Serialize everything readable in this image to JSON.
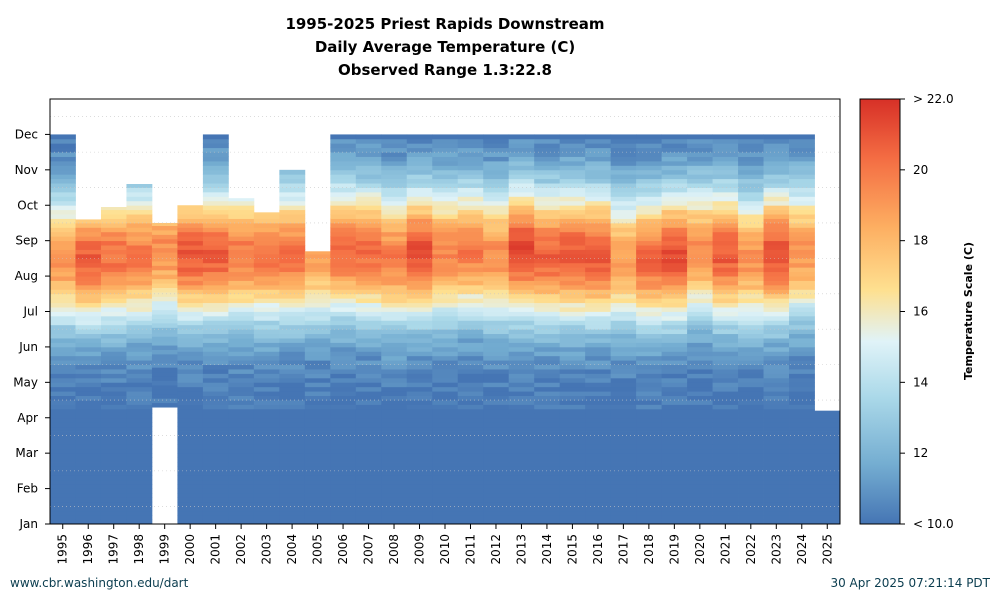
{
  "chart_data": {
    "type": "heatmap",
    "title": "1995-2025 Priest Rapids Downstream",
    "subtitle": "Daily Average Temperature (C)",
    "subtitle2": "Observed Range 1.3:22.8",
    "x_categories": [
      "1995",
      "1996",
      "1997",
      "1998",
      "1999",
      "2000",
      "2001",
      "2002",
      "2003",
      "2004",
      "2005",
      "2006",
      "2007",
      "2008",
      "2009",
      "2010",
      "2011",
      "2012",
      "2013",
      "2014",
      "2015",
      "2016",
      "2017",
      "2018",
      "2019",
      "2020",
      "2021",
      "2022",
      "2023",
      "2024",
      "2025"
    ],
    "y_tick_labels": [
      "Jan",
      "Feb",
      "Mar",
      "Apr",
      "May",
      "Jun",
      "Jul",
      "Aug",
      "Sep",
      "Oct",
      "Nov",
      "Dec"
    ],
    "colorbar": {
      "label": "Temperature Scale (C)",
      "range": [
        10,
        22
      ],
      "tick_labels": [
        "< 10.0",
        "12",
        "14",
        "16",
        "18",
        "20",
        "> 22.0"
      ],
      "tick_values": [
        10,
        12,
        14,
        16,
        18,
        20,
        22
      ],
      "colors": [
        "#4575b4",
        "#74add1",
        "#abd9e9",
        "#e0f3f8",
        "#fee090",
        "#fdae61",
        "#f46d43",
        "#d73027"
      ]
    },
    "observed_range": [
      1.3,
      22.8
    ],
    "data_coverage_months": [
      {
        "year": "1995",
        "start": 1,
        "end": 12
      },
      {
        "year": "1996",
        "start": 1,
        "end": 9.6
      },
      {
        "year": "1997",
        "start": 1,
        "end": 9.95
      },
      {
        "year": "1998",
        "start": 1,
        "end": 10.6
      },
      {
        "year": "1999",
        "start": 4.3,
        "end": 9.5
      },
      {
        "year": "2000",
        "start": 1,
        "end": 10
      },
      {
        "year": "2001",
        "start": 1,
        "end": 12
      },
      {
        "year": "2002",
        "start": 1,
        "end": 10.2
      },
      {
        "year": "2003",
        "start": 1,
        "end": 9.8
      },
      {
        "year": "2004",
        "start": 1,
        "end": 11
      },
      {
        "year": "2005",
        "start": 1,
        "end": 8.7
      },
      {
        "year": "2006",
        "start": 1,
        "end": 12
      },
      {
        "year": "2007",
        "start": 1,
        "end": 12
      },
      {
        "year": "2008",
        "start": 1,
        "end": 12
      },
      {
        "year": "2009",
        "start": 1,
        "end": 12
      },
      {
        "year": "2010",
        "start": 1,
        "end": 12
      },
      {
        "year": "2011",
        "start": 1,
        "end": 12
      },
      {
        "year": "2012",
        "start": 1,
        "end": 12
      },
      {
        "year": "2013",
        "start": 1,
        "end": 12
      },
      {
        "year": "2014",
        "start": 1,
        "end": 12
      },
      {
        "year": "2015",
        "start": 1,
        "end": 12
      },
      {
        "year": "2016",
        "start": 1,
        "end": 12
      },
      {
        "year": "2017",
        "start": 1,
        "end": 12
      },
      {
        "year": "2018",
        "start": 1,
        "end": 12
      },
      {
        "year": "2019",
        "start": 1,
        "end": 12
      },
      {
        "year": "2020",
        "start": 1,
        "end": 12
      },
      {
        "year": "2021",
        "start": 1,
        "end": 12
      },
      {
        "year": "2022",
        "start": 1,
        "end": 12
      },
      {
        "year": "2023",
        "start": 1,
        "end": 12
      },
      {
        "year": "2024",
        "start": 1,
        "end": 12
      },
      {
        "year": "2025",
        "start": 1,
        "end": 4.2
      }
    ]
  },
  "footer": {
    "left": "www.cbr.washington.edu/dart",
    "right": "30 Apr 2025 07:21:14 PDT"
  }
}
